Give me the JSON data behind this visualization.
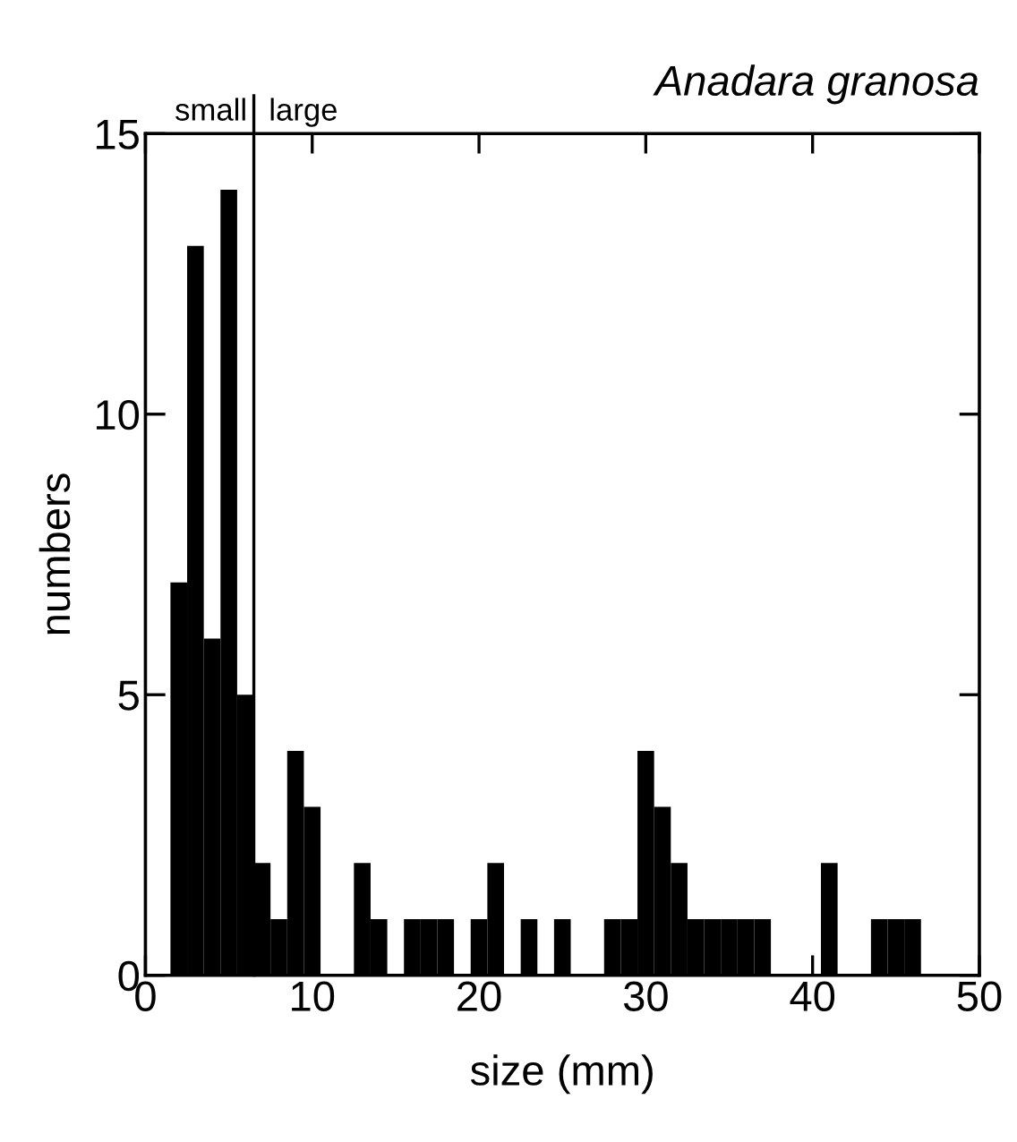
{
  "chart_data": {
    "type": "histogram",
    "title": "Anadara granosa",
    "xlabel": "size (mm)",
    "ylabel": "numbers",
    "bins": [
      1.5,
      2.5,
      3.5,
      4.5,
      5.5,
      6.5,
      7.5,
      8.5,
      9.5,
      10.5,
      11.5,
      12.5,
      13.5,
      14.5,
      15.5,
      16.5,
      17.5,
      18.5,
      19.5,
      20.5,
      21.5,
      22.5,
      23.5,
      24.5,
      25.5,
      26.5,
      27.5,
      28.5,
      29.5,
      30.5,
      31.5,
      32.5,
      33.5,
      34.5,
      35.5,
      36.5,
      37.5,
      38.5,
      39.5,
      40.5,
      41.5,
      42.5,
      43.5,
      44.5,
      45.5,
      46.5
    ],
    "values": [
      7,
      13,
      6,
      14,
      5,
      2,
      1,
      4,
      3,
      0,
      0,
      2,
      1,
      0,
      1,
      1,
      1,
      0,
      1,
      2,
      0,
      1,
      0,
      1,
      0,
      0,
      1,
      1,
      4,
      3,
      2,
      1,
      1,
      1,
      1,
      1,
      0,
      0,
      0,
      2,
      0,
      0,
      1,
      1,
      1
    ],
    "color": "#000000",
    "xlim": [
      0,
      50
    ],
    "xticks": [
      0,
      10,
      20,
      30,
      40,
      50
    ],
    "ylim": [
      0,
      15
    ],
    "yticks": [
      0,
      5,
      10,
      15
    ],
    "ref_lines": [
      {
        "axis": "x",
        "value": 6.5,
        "color": "#000000"
      }
    ],
    "annotations": [
      "small",
      "large"
    ],
    "grid": false,
    "legend": false
  }
}
